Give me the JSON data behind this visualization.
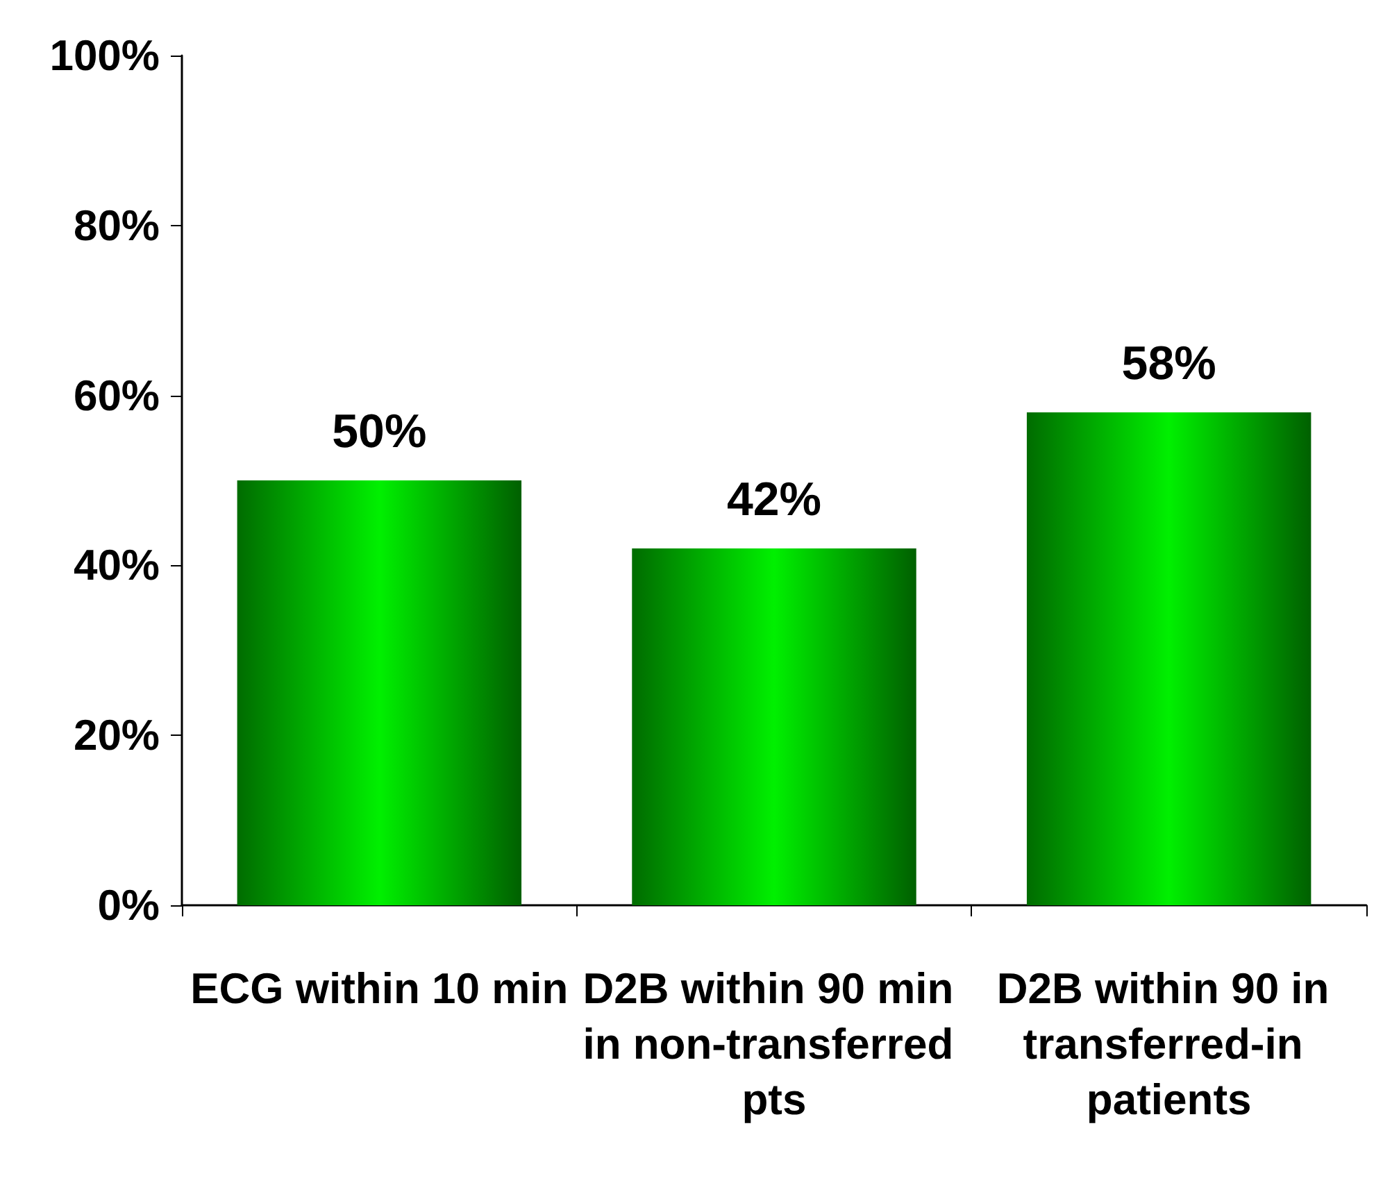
{
  "chart_data": {
    "type": "bar",
    "categories": [
      "ECG within 10 min",
      "D2B within 90 min in non-transferred pts",
      "D2B within 90 in transferred-in patients"
    ],
    "values": [
      50,
      42,
      58
    ],
    "value_labels": [
      "50%",
      "42%",
      "58%"
    ],
    "color": "#00f000",
    "ylim": [
      0,
      100
    ],
    "yticks": [
      {
        "value": 0,
        "label": "0%"
      },
      {
        "value": 20,
        "label": "20%"
      },
      {
        "value": 40,
        "label": "40%"
      },
      {
        "value": 60,
        "label": "60%"
      },
      {
        "value": 80,
        "label": "80%"
      },
      {
        "value": 100,
        "label": "100%"
      }
    ],
    "grid": false
  }
}
